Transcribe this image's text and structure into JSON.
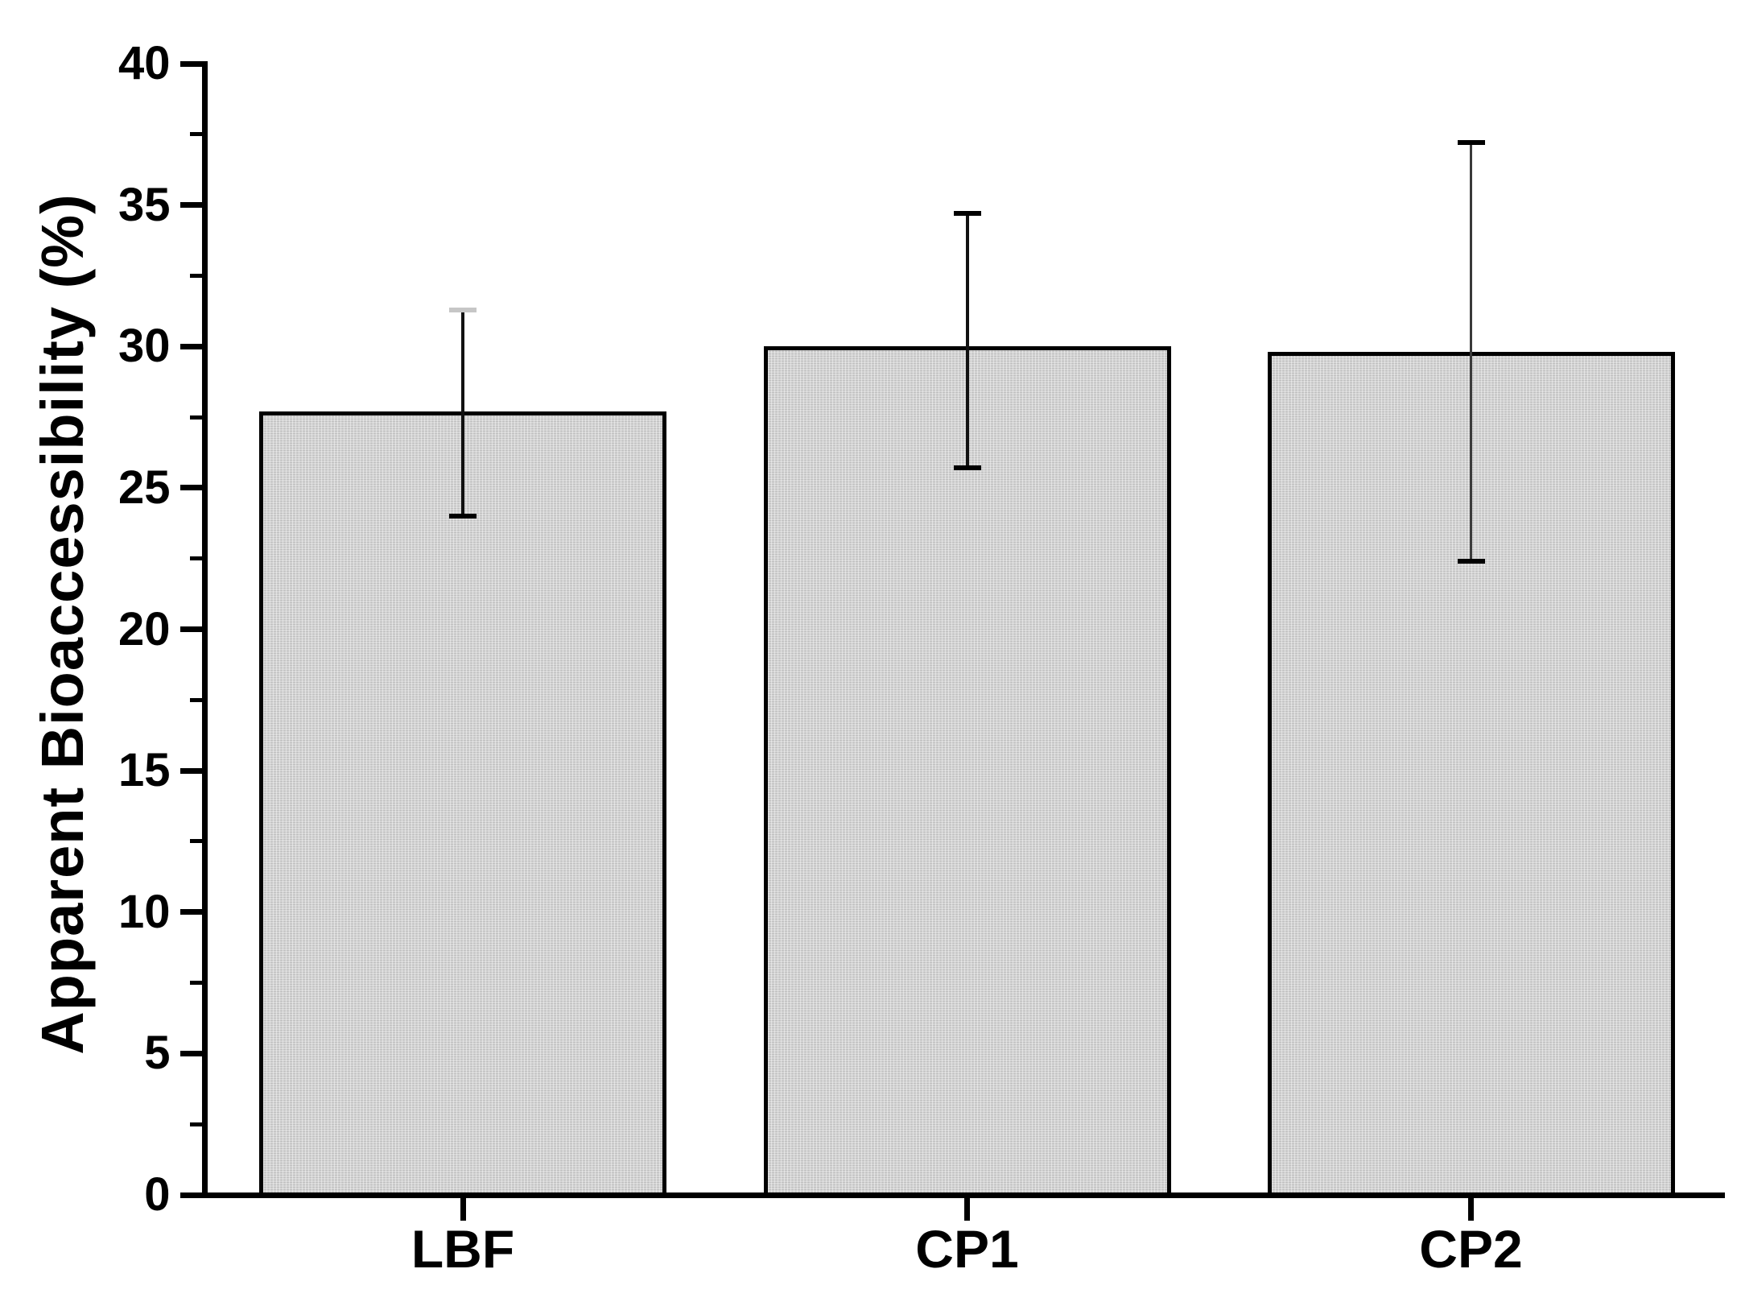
{
  "figure": {
    "background_color": "#ffffff",
    "bar_fill_color": "#d4d4d4",
    "bar_border_color": "#000000",
    "axis_color": "#000000",
    "text_color": "#000000"
  },
  "chart_data": {
    "type": "bar",
    "title": "",
    "xlabel": "",
    "ylabel": "Apparent Bioaccessibility (%)",
    "ylim": [
      0,
      40
    ],
    "y_major_tick_step": 5,
    "y_minor_tick_step": 2.5,
    "y_tick_labels": [
      "0",
      "5",
      "10",
      "15",
      "20",
      "25",
      "30",
      "35",
      "40"
    ],
    "grid": "off",
    "legend": "none",
    "categories": [
      "LBF",
      "CP1",
      "CP2"
    ],
    "series": [
      {
        "name": "Apparent Bioaccessibility",
        "values": [
          27.7,
          30.0,
          29.8
        ],
        "error_low": [
          24.0,
          25.7,
          22.4
        ],
        "error_high": [
          31.3,
          34.7,
          37.2
        ]
      }
    ]
  }
}
